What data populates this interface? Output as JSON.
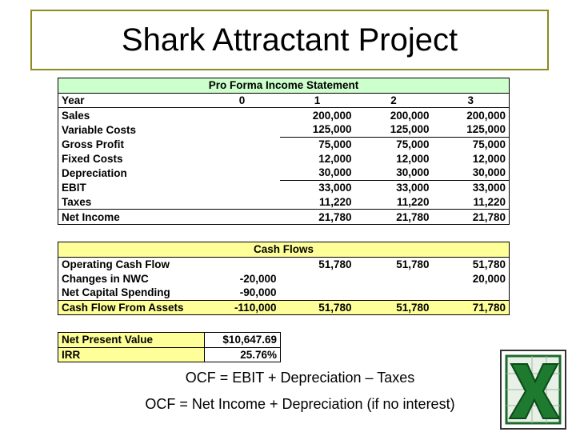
{
  "title": "Shark Attractant Project",
  "income_statement": {
    "title": "Pro Forma Income Statement",
    "rows": [
      [
        "Year",
        "0",
        "1",
        "2",
        "3"
      ],
      [
        "Sales",
        null,
        "200,000",
        "200,000",
        "200,000"
      ],
      [
        "Variable Costs",
        null,
        "125,000",
        "125,000",
        "125,000"
      ],
      [
        "Gross Profit",
        null,
        "75,000",
        "75,000",
        "75,000"
      ],
      [
        "Fixed Costs",
        null,
        "12,000",
        "12,000",
        "12,000"
      ],
      [
        "Depreciation",
        null,
        "30,000",
        "30,000",
        "30,000"
      ],
      [
        "EBIT",
        null,
        "33,000",
        "33,000",
        "33,000"
      ],
      [
        "Taxes",
        null,
        "11,220",
        "11,220",
        "11,220"
      ],
      [
        "Net Income",
        null,
        "21,780",
        "21,780",
        "21,780"
      ]
    ]
  },
  "cash_flows": {
    "title": "Cash Flows",
    "rows": [
      [
        "Operating Cash Flow",
        null,
        "51,780",
        "51,780",
        "51,780"
      ],
      [
        "Changes in NWC",
        "-20,000",
        null,
        null,
        "20,000"
      ],
      [
        "Net Capital Spending",
        "-90,000",
        null,
        null,
        null
      ],
      [
        "Cash Flow From Assets",
        "-110,000",
        "51,780",
        "51,780",
        "71,780"
      ]
    ]
  },
  "valuation": {
    "rows": [
      [
        "Net Present Value",
        "$10,647.69"
      ],
      [
        "IRR",
        "25.76%"
      ]
    ]
  },
  "formulas": [
    "OCF = EBIT + Depreciation – Taxes",
    "OCF = Net Income + Depreciation (if no interest)"
  ]
}
